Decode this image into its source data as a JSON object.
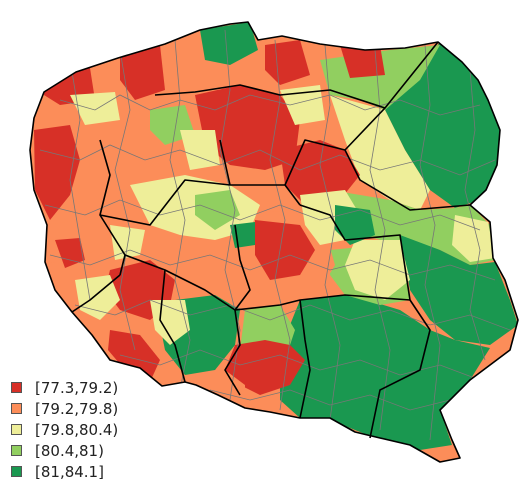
{
  "map": {
    "legend": [
      {
        "label": "[77.3,79.2)",
        "color": "#d73027"
      },
      {
        "label": "[79.2,79.8)",
        "color": "#fc8d59"
      },
      {
        "label": "[79.8,80.4)",
        "color": "#eeee99"
      },
      {
        "label": "[80.4,81)",
        "color": "#91cf60"
      },
      {
        "label": "[81,84.1]",
        "color": "#1a9850"
      }
    ],
    "colors": {
      "region_border": "#777777",
      "province_border": "#000000"
    }
  }
}
